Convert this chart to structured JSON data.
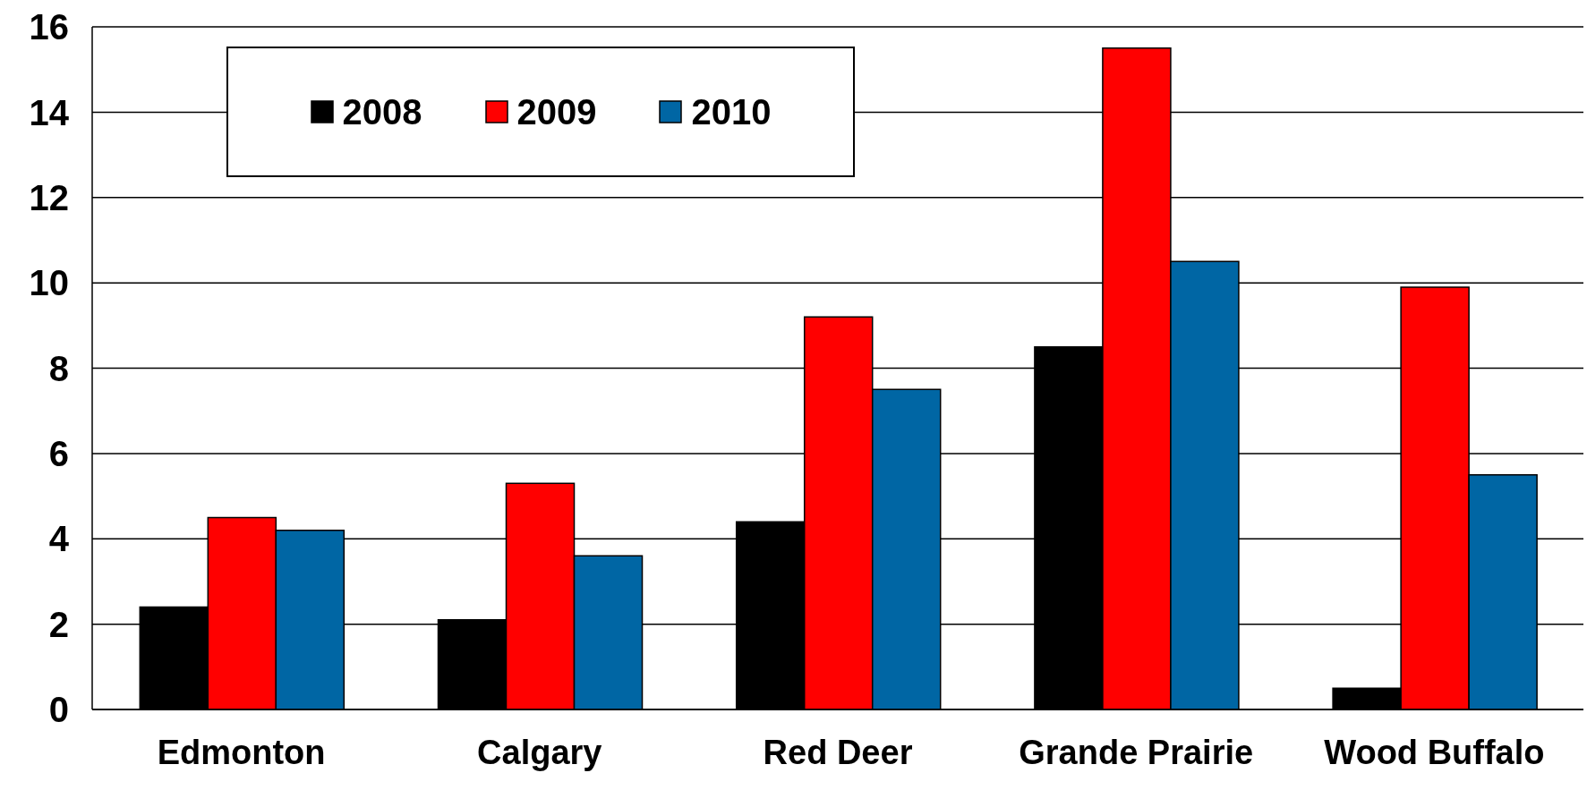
{
  "chart_data": {
    "type": "bar",
    "categories": [
      "Edmonton",
      "Calgary",
      "Red Deer",
      "Grande Prairie",
      "Wood Buffalo"
    ],
    "series": [
      {
        "name": "2008",
        "color": "#000000",
        "values": [
          2.4,
          2.1,
          4.4,
          8.5,
          0.5
        ]
      },
      {
        "name": "2009",
        "color": "#ff0000",
        "values": [
          4.5,
          5.3,
          9.2,
          15.5,
          9.9
        ]
      },
      {
        "name": "2010",
        "color": "#0066a4",
        "values": [
          4.2,
          3.6,
          7.5,
          10.5,
          5.5
        ]
      }
    ],
    "ylim": [
      0,
      16
    ],
    "yticks": [
      0,
      2,
      4,
      6,
      8,
      10,
      12,
      14,
      16
    ],
    "grid": "y",
    "legend": "top left"
  }
}
